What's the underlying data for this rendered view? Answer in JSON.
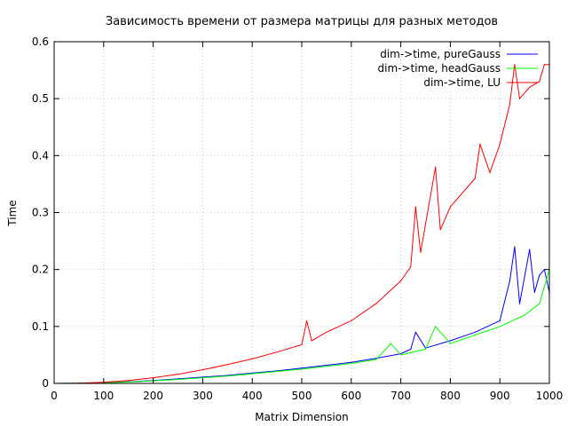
{
  "chart_data": {
    "type": "line",
    "title": "Зависимость времени от размера матрицы для разных методов",
    "xlabel": "Matrix Dimension",
    "ylabel": "Time",
    "xlim": [
      0,
      1000
    ],
    "ylim": [
      0,
      0.6
    ],
    "x_ticks": [
      "0",
      "100",
      "200",
      "300",
      "400",
      "500",
      "600",
      "700",
      "800",
      "900",
      "1000"
    ],
    "y_ticks": [
      "0",
      "0.1",
      "0.2",
      "0.3",
      "0.4",
      "0.5",
      "0.6"
    ],
    "grid": true,
    "legend_position": "top-right",
    "series": [
      {
        "name": "dim->time, pureGauss",
        "color": "#0000ff",
        "x": [
          0,
          50,
          100,
          150,
          200,
          250,
          300,
          350,
          400,
          450,
          500,
          550,
          600,
          650,
          700,
          720,
          730,
          750,
          800,
          850,
          900,
          920,
          930,
          940,
          960,
          970,
          980,
          990,
          1000
        ],
        "y": [
          0,
          0.0003,
          0.0012,
          0.003,
          0.005,
          0.008,
          0.011,
          0.014,
          0.018,
          0.022,
          0.027,
          0.032,
          0.037,
          0.044,
          0.052,
          0.06,
          0.09,
          0.062,
          0.075,
          0.09,
          0.11,
          0.18,
          0.24,
          0.14,
          0.235,
          0.16,
          0.19,
          0.2,
          0.16
        ]
      },
      {
        "name": "dim->time, headGauss",
        "color": "#00ff00",
        "x": [
          0,
          50,
          100,
          150,
          200,
          250,
          300,
          350,
          400,
          450,
          500,
          550,
          600,
          650,
          680,
          700,
          750,
          770,
          800,
          850,
          900,
          950,
          980,
          1000
        ],
        "y": [
          0,
          0.0003,
          0.001,
          0.0025,
          0.0045,
          0.007,
          0.01,
          0.013,
          0.017,
          0.021,
          0.025,
          0.03,
          0.035,
          0.042,
          0.07,
          0.05,
          0.06,
          0.1,
          0.07,
          0.085,
          0.1,
          0.12,
          0.14,
          0.2
        ]
      },
      {
        "name": "dim->time, LU",
        "color": "#ff0000",
        "x": [
          0,
          50,
          100,
          150,
          200,
          250,
          300,
          350,
          400,
          450,
          500,
          510,
          520,
          550,
          600,
          650,
          700,
          720,
          730,
          740,
          770,
          780,
          800,
          850,
          860,
          880,
          900,
          920,
          930,
          940,
          960,
          980,
          990,
          1000
        ],
        "y": [
          0,
          0.0005,
          0.002,
          0.005,
          0.01,
          0.016,
          0.024,
          0.033,
          0.043,
          0.055,
          0.068,
          0.11,
          0.075,
          0.09,
          0.11,
          0.14,
          0.18,
          0.205,
          0.31,
          0.23,
          0.38,
          0.27,
          0.31,
          0.36,
          0.42,
          0.37,
          0.42,
          0.49,
          0.56,
          0.5,
          0.52,
          0.53,
          0.56,
          0.56
        ]
      }
    ]
  }
}
